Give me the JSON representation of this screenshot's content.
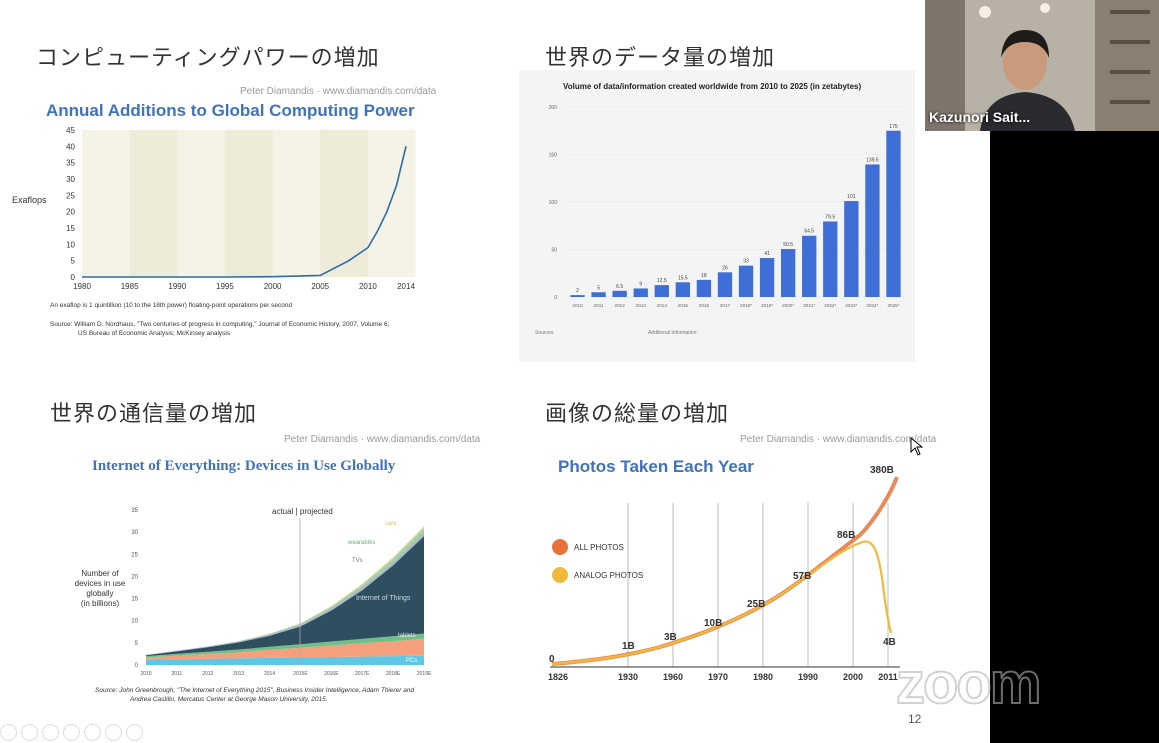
{
  "slide": {
    "q1_title": "コンピューティングパワーの増加",
    "q2_title": "世界のデータ量の増加",
    "q3_title": "世界の通信量の増加",
    "q4_title": "画像の総量の増加",
    "page_number": "12"
  },
  "chart1": {
    "credit": "Peter Diamandis  ·  www.diamandis.com/data",
    "title": "Annual Additions to Global Computing Power",
    "ylabel": "Exaflops",
    "yticks": [
      "45",
      "40",
      "35",
      "30",
      "25",
      "20",
      "15",
      "10",
      "5",
      "0"
    ],
    "xticks": [
      "1980",
      "1985",
      "1990",
      "1995",
      "2000",
      "2005",
      "2010",
      "2014"
    ],
    "note": "An exaflop is 1 quintillion (10 to the 18th power) floating-point operations per second",
    "source_line1": "Source: William D. Nordhaus, \"Two centuries of progress in computing,\" Journal of Economic History, 2007, Volume 6;",
    "source_line2": "US Bureau of Economic Analysis; McKinsey analysis"
  },
  "chart2": {
    "title": "Volume of data/information created worldwide from 2010 to 2025 (in zetabytes)",
    "yticks": [
      "200",
      "150",
      "100",
      "50",
      "0"
    ],
    "categories": [
      "2010",
      "2011",
      "2012",
      "2013",
      "2014",
      "2015",
      "2016",
      "2017",
      "2018*",
      "2019*",
      "2020*",
      "2021*",
      "2022*",
      "2023*",
      "2024*",
      "2025*"
    ],
    "value_labels": [
      "2",
      "5",
      "6.5",
      "9",
      "12.5",
      "15.5",
      "18",
      "26",
      "33",
      "41",
      "50.5",
      "64.5",
      "79.5",
      "101",
      "139.5",
      "175"
    ],
    "footer_left_title": "Sources",
    "footer_right_title": "Additional Information:"
  },
  "chart3": {
    "credit": "Peter Diamandis  ·  www.diamandis.com/data",
    "title": "Internet of Everything: Devices in Use Globally",
    "ylabel_line1": "Number of",
    "ylabel_line2": "devices in use",
    "ylabel_line3": "globally",
    "ylabel_line4": "(in billions)",
    "divider_label": "actual | projected",
    "yticks": [
      "35",
      "30",
      "25",
      "20",
      "15",
      "10",
      "5",
      "0"
    ],
    "xticks": [
      "2010",
      "2011",
      "2012",
      "2013",
      "2014",
      "2015E",
      "2016E",
      "2017E",
      "2018E",
      "2019E"
    ],
    "labels": {
      "cars": "cars",
      "wearables": "wearables",
      "tvs": "TVs",
      "iot": "Internet of Things",
      "tablets": "tablets",
      "pcs": "PCs"
    },
    "source_line1": "Source: John Greenbrough, \"The Internet of Everything 2015\", Business Insider Intelligence, Adam Thierer and",
    "source_line2": "Andrea Castillo, Mercatus Center at George Mason University, 2015."
  },
  "chart4": {
    "credit": "Peter Diamandis  ·  www.diamandis.com/data",
    "title": "Photos Taken Each Year",
    "legend_all": "ALL PHOTOS",
    "legend_analog": "ANALOG PHOTOS",
    "xticks": [
      "1826",
      "1930",
      "1960",
      "1970",
      "1980",
      "1990",
      "2000",
      "2011"
    ],
    "value_labels": {
      "v0": "0",
      "v1": "1B",
      "v3": "3B",
      "v10": "10B",
      "v25": "25B",
      "v57": "57B",
      "v86": "86B",
      "v380": "380B",
      "v4": "4B"
    },
    "colors": {
      "all": "#e8733a",
      "analog": "#f0b93a"
    }
  },
  "chart_data": [
    {
      "type": "line",
      "title": "Annual Additions to Global Computing Power",
      "ylabel": "Exaflops",
      "x": [
        1980,
        1985,
        1990,
        1995,
        2000,
        2005,
        2008,
        2010,
        2011,
        2012,
        2013,
        2014
      ],
      "values": [
        0,
        0,
        0,
        0,
        0.1,
        0.5,
        5,
        9,
        14,
        20,
        28,
        40
      ],
      "ylim": [
        0,
        45
      ]
    },
    {
      "type": "bar",
      "title": "Volume of data/information created worldwide from 2010 to 2025 (in zetabytes)",
      "categories": [
        "2010",
        "2011",
        "2012",
        "2013",
        "2014",
        "2015",
        "2016",
        "2017",
        "2018*",
        "2019*",
        "2020*",
        "2021*",
        "2022*",
        "2023*",
        "2024*",
        "2025*"
      ],
      "values": [
        2,
        5,
        6.5,
        9,
        12.5,
        15.5,
        18,
        26,
        33,
        41,
        50.5,
        64.5,
        79.5,
        101,
        139.5,
        175
      ],
      "ylim": [
        0,
        200
      ],
      "color": "#3f6fd6"
    },
    {
      "type": "area",
      "title": "Internet of Everything: Devices in Use Globally",
      "categories": [
        "2010",
        "2011",
        "2012",
        "2013",
        "2014",
        "2015E",
        "2016E",
        "2017E",
        "2018E",
        "2019E"
      ],
      "series": [
        {
          "name": "PCs",
          "values": [
            1.2,
            1.3,
            1.4,
            1.5,
            1.6,
            1.7,
            1.8,
            1.9,
            2.0,
            2.1
          ],
          "color": "#5ec7e6"
        },
        {
          "name": "tablets",
          "values": [
            0.5,
            0.8,
            1.1,
            1.4,
            1.8,
            2.2,
            2.6,
            3.0,
            3.4,
            3.8
          ],
          "color": "#f4a07c"
        },
        {
          "name": "",
          "values": [
            0.3,
            0.4,
            0.5,
            0.6,
            0.7,
            0.8,
            0.9,
            1.0,
            1.1,
            1.2
          ],
          "color": "#6fc088"
        },
        {
          "name": "Internet of Things",
          "values": [
            0.2,
            0.6,
            1.0,
            1.6,
            2.5,
            4.0,
            7.0,
            11.0,
            16.0,
            22.0
          ],
          "color": "#2f4e5f"
        },
        {
          "name": "TVs",
          "values": [
            0.1,
            0.1,
            0.2,
            0.2,
            0.3,
            0.4,
            0.5,
            0.6,
            0.7,
            0.8
          ],
          "color": "#a8b8c8"
        },
        {
          "name": "wearables",
          "values": [
            0,
            0,
            0,
            0.1,
            0.1,
            0.2,
            0.3,
            0.5,
            0.7,
            0.9
          ],
          "color": "#9fd0a8"
        },
        {
          "name": "cars",
          "values": [
            0,
            0,
            0,
            0,
            0.1,
            0.1,
            0.2,
            0.3,
            0.4,
            0.5
          ],
          "color": "#d6d48a"
        }
      ],
      "ylim": [
        0,
        35
      ]
    },
    {
      "type": "line",
      "title": "Photos Taken Each Year",
      "x": [
        1826,
        1930,
        1960,
        1970,
        1980,
        1990,
        2000,
        2011
      ],
      "series": [
        {
          "name": "ALL PHOTOS",
          "values": [
            0,
            1,
            3,
            10,
            25,
            57,
            86,
            380
          ]
        },
        {
          "name": "ANALOG PHOTOS",
          "values": [
            0,
            1,
            3,
            10,
            25,
            57,
            86,
            4
          ]
        }
      ]
    }
  ],
  "video": {
    "participant_name": "Kazunori Sait..."
  },
  "zoom": {
    "logo_text": "zoom"
  }
}
